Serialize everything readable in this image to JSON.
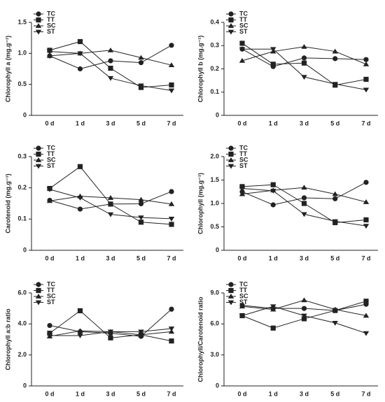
{
  "chart_data": [
    {
      "type": "line",
      "ylabel": "Chlorophyll a (mg.g⁻¹)",
      "categories": [
        "0 d",
        "1 d",
        "3 d",
        "5 d",
        "7 d"
      ],
      "ylim": [
        0,
        1.5
      ],
      "yticks": [
        0,
        0.5,
        {
          "value": 1,
          "label": "1.0"
        },
        1.5
      ],
      "legend": "upper left",
      "series": [
        {
          "name": "TC",
          "color": "#222222",
          "marker": "circle",
          "values": [
            0.96,
            0.75,
            0.88,
            0.85,
            1.13
          ]
        },
        {
          "name": "TT",
          "color": "#222222",
          "marker": "square",
          "values": [
            1.05,
            1.19,
            0.76,
            0.45,
            0.49
          ]
        },
        {
          "name": "SC",
          "color": "#222222",
          "marker": "triangle-up",
          "values": [
            0.96,
            1.0,
            1.05,
            0.93,
            0.81
          ]
        },
        {
          "name": "ST",
          "color": "#222222",
          "marker": "triangle-down",
          "values": [
            1.03,
            1.0,
            0.6,
            0.48,
            0.4
          ]
        }
      ]
    },
    {
      "type": "line",
      "ylabel": "Chlorophyll b (mg.g⁻¹)",
      "categories": [
        "0 d",
        "1 d",
        "3 d",
        "5 d",
        "7 d"
      ],
      "ylim": [
        0,
        0.4
      ],
      "yticks": [
        0,
        0.1,
        0.2,
        0.3,
        0.4
      ],
      "legend": "upper left",
      "series": [
        {
          "name": "TC",
          "color": "#222222",
          "marker": "circle",
          "values": [
            0.285,
            0.21,
            0.247,
            0.244,
            0.24
          ]
        },
        {
          "name": "TT",
          "color": "#222222",
          "marker": "square",
          "values": [
            0.31,
            0.22,
            0.225,
            0.13,
            0.155
          ]
        },
        {
          "name": "SC",
          "color": "#222222",
          "marker": "triangle-up",
          "values": [
            0.235,
            0.275,
            0.295,
            0.275,
            0.22
          ]
        },
        {
          "name": "ST",
          "color": "#222222",
          "marker": "triangle-down",
          "values": [
            0.285,
            0.285,
            0.165,
            0.135,
            0.11
          ]
        }
      ]
    },
    {
      "type": "line",
      "ylabel": "Carotenoid (mg.g⁻¹)",
      "categories": [
        "0 d",
        "1 d",
        "3 d",
        "5 d",
        "7 d"
      ],
      "ylim": [
        0,
        0.3
      ],
      "yticks": [
        0,
        0.1,
        0.2,
        0.3
      ],
      "legend": "upper left",
      "series": [
        {
          "name": "TC",
          "color": "#222222",
          "marker": "circle",
          "values": [
            0.16,
            0.132,
            0.148,
            0.149,
            0.188
          ]
        },
        {
          "name": "TT",
          "color": "#222222",
          "marker": "square",
          "values": [
            0.198,
            0.268,
            0.148,
            0.09,
            0.083
          ]
        },
        {
          "name": "SC",
          "color": "#222222",
          "marker": "triangle-up",
          "values": [
            0.158,
            0.173,
            0.168,
            0.162,
            0.148
          ]
        },
        {
          "name": "ST",
          "color": "#222222",
          "marker": "triangle-down",
          "values": [
            0.195,
            0.168,
            0.115,
            0.105,
            0.101
          ]
        }
      ]
    },
    {
      "type": "line",
      "ylabel": "Chlorophyll (mg.g⁻¹)",
      "categories": [
        "0 d",
        "1 d",
        "3 d",
        "5 d",
        "7 d"
      ],
      "ylim": [
        0,
        2
      ],
      "yticks": [
        0,
        0.5,
        {
          "value": 1,
          "label": "1.0"
        },
        1.5,
        {
          "value": 2,
          "label": "2.0"
        }
      ],
      "legend": "upper left",
      "series": [
        {
          "name": "TC",
          "color": "#222222",
          "marker": "circle",
          "values": [
            1.25,
            0.97,
            1.12,
            1.1,
            1.45
          ]
        },
        {
          "name": "TT",
          "color": "#222222",
          "marker": "square",
          "values": [
            1.36,
            1.4,
            1.0,
            0.59,
            0.65
          ]
        },
        {
          "name": "SC",
          "color": "#222222",
          "marker": "triangle-up",
          "values": [
            1.2,
            1.28,
            1.34,
            1.2,
            1.03
          ]
        },
        {
          "name": "ST",
          "color": "#222222",
          "marker": "triangle-down",
          "values": [
            1.32,
            1.27,
            0.77,
            0.62,
            0.52
          ]
        }
      ]
    },
    {
      "type": "line",
      "ylabel": "Chlorophyll a:b ratio",
      "categories": [
        "0 d",
        "1 d",
        "3 d",
        "5 d",
        "7 d"
      ],
      "ylim": [
        0,
        6
      ],
      "yticks": [
        0,
        {
          "value": 2,
          "label": "2.0"
        },
        {
          "value": 4,
          "label": "4.0"
        },
        {
          "value": 6,
          "label": "6.0"
        }
      ],
      "legend": "upper left",
      "series": [
        {
          "name": "TC",
          "color": "#222222",
          "marker": "circle",
          "values": [
            3.9,
            3.5,
            3.4,
            3.2,
            4.95
          ]
        },
        {
          "name": "TT",
          "color": "#222222",
          "marker": "square",
          "values": [
            3.4,
            4.85,
            3.1,
            3.3,
            2.9
          ]
        },
        {
          "name": "SC",
          "color": "#222222",
          "marker": "triangle-up",
          "values": [
            3.2,
            3.55,
            3.5,
            3.3,
            3.5
          ]
        },
        {
          "name": "ST",
          "color": "#222222",
          "marker": "triangle-down",
          "values": [
            3.25,
            3.25,
            3.5,
            3.5,
            3.7
          ]
        }
      ]
    },
    {
      "type": "line",
      "ylabel": "Chlorophyll/Carotenoid ratio",
      "categories": [
        "0 d",
        "1 d",
        "3 d",
        "5 d",
        "7 d"
      ],
      "ylim": [
        0,
        9
      ],
      "yticks": [
        0,
        {
          "value": 3,
          "label": "3.0"
        },
        {
          "value": 6,
          "label": "6.0"
        },
        {
          "value": 9,
          "label": "9.0"
        }
      ],
      "legend": "upper left",
      "series": [
        {
          "name": "TC",
          "color": "#222222",
          "marker": "circle",
          "values": [
            7.8,
            7.5,
            7.5,
            7.3,
            7.9
          ]
        },
        {
          "name": "TT",
          "color": "#222222",
          "marker": "square",
          "values": [
            6.8,
            5.6,
            6.5,
            7.3,
            8.2
          ]
        },
        {
          "name": "SC",
          "color": "#222222",
          "marker": "triangle-up",
          "values": [
            7.7,
            7.4,
            8.3,
            7.4,
            6.8
          ]
        },
        {
          "name": "ST",
          "color": "#222222",
          "marker": "triangle-down",
          "values": [
            6.8,
            7.7,
            6.8,
            6.1,
            5.1
          ]
        }
      ]
    }
  ]
}
